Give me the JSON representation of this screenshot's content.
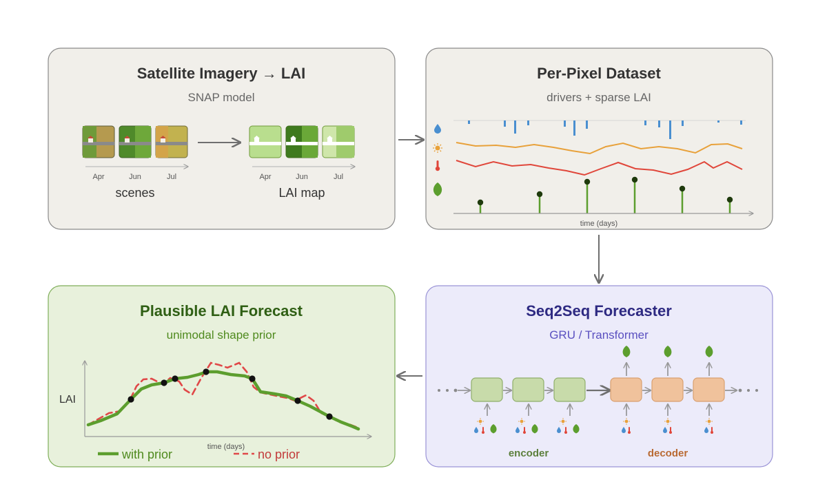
{
  "panels": {
    "satellite": {
      "title": "Satellite Imagery → LAI",
      "subtitle": "SNAP model",
      "scene_months": [
        "Apr",
        "Jun",
        "Jul"
      ],
      "scenes_label": "scenes",
      "lai_months": [
        "Apr",
        "Jun",
        "Jul"
      ],
      "lai_label": "LAI map"
    },
    "dataset": {
      "title": "Per-Pixel Dataset",
      "subtitle": "drivers + sparse LAI",
      "axis_label": "time (days)",
      "icons": [
        "water-drop-icon",
        "sun-icon",
        "thermometer-icon",
        "leaf-icon"
      ]
    },
    "forecaster": {
      "title": "Seq2Seq Forecaster",
      "subtitle": "GRU / Transformer",
      "encoder_label": "encoder",
      "decoder_label": "decoder"
    },
    "forecast": {
      "title": "Plausible LAI Forecast",
      "subtitle": "unimodal shape prior",
      "y_label": "LAI",
      "x_label": "time (days)",
      "legend_with": "with prior",
      "legend_without": "no prior"
    }
  },
  "colors": {
    "panel_gray": "#f1efea",
    "panel_border_gray": "#8a8a8a",
    "panel_green": "#e8f1dc",
    "panel_border_green": "#7fae59",
    "panel_purple": "#ecebfa",
    "panel_border_purple": "#9a93d6",
    "leaf_green": "#5c9e2e",
    "precip_blue": "#4a8fd0",
    "sun_orange": "#e8a13a",
    "temp_red": "#e0463a",
    "encoder_fill": "#c8dbaa",
    "decoder_fill": "#f0c29c",
    "title_green": "#2f5f14",
    "subtitle_green": "#4f8a1e",
    "title_purple": "#2e2a82",
    "subtitle_purple": "#5a50c0",
    "encoder_text": "#5c7f3c",
    "decoder_text": "#b96a33",
    "no_prior_red": "#e04848"
  }
}
